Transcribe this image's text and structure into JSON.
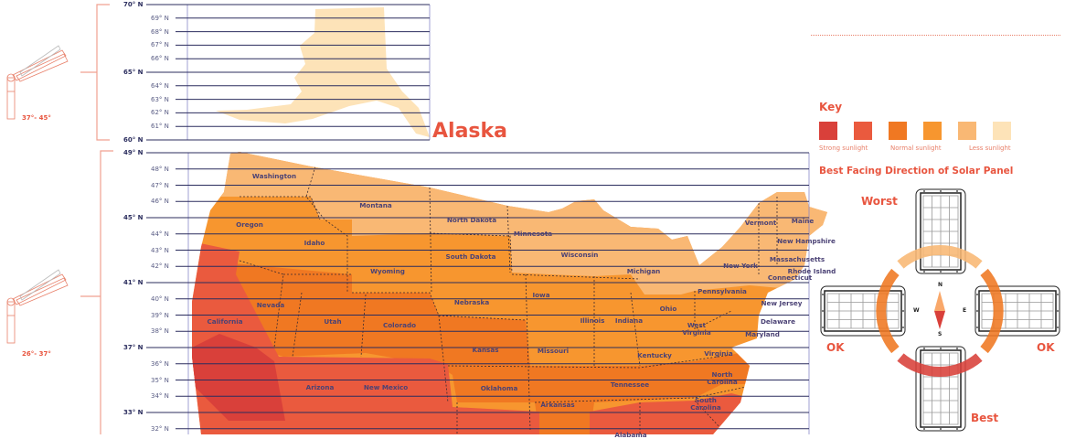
{
  "alaska": {
    "title": "Alaska",
    "latitudes": [
      {
        "label": "70° N",
        "major": true
      },
      {
        "label": "69° N",
        "major": false
      },
      {
        "label": "68° N",
        "major": false
      },
      {
        "label": "67° N",
        "major": false
      },
      {
        "label": "66° N",
        "major": false
      },
      {
        "label": "65° N",
        "major": true
      },
      {
        "label": "64° N",
        "major": false
      },
      {
        "label": "63° N",
        "major": false
      },
      {
        "label": "62° N",
        "major": false
      },
      {
        "label": "61° N",
        "major": false
      },
      {
        "label": "60° N",
        "major": true
      }
    ],
    "tilt_range": "37°- 45°"
  },
  "conus": {
    "latitudes": [
      {
        "label": "49° N",
        "major": true
      },
      {
        "label": "48° N",
        "major": false
      },
      {
        "label": "47° N",
        "major": false
      },
      {
        "label": "46° N",
        "major": false
      },
      {
        "label": "45° N",
        "major": true
      },
      {
        "label": "44° N",
        "major": false
      },
      {
        "label": "43° N",
        "major": false
      },
      {
        "label": "42° N",
        "major": false
      },
      {
        "label": "41° N",
        "major": true
      },
      {
        "label": "40° N",
        "major": false
      },
      {
        "label": "39° N",
        "major": false
      },
      {
        "label": "38° N",
        "major": false
      },
      {
        "label": "37° N",
        "major": true
      },
      {
        "label": "36° N",
        "major": false
      },
      {
        "label": "35° N",
        "major": false
      },
      {
        "label": "34° N",
        "major": false
      },
      {
        "label": "33° N",
        "major": true
      },
      {
        "label": "32° N",
        "major": false
      }
    ],
    "tilt_range": "26°- 37°",
    "states": [
      "Washington",
      "Montana",
      "North Dakota",
      "Minnesota",
      "Oregon",
      "Idaho",
      "South Dakota",
      "Wisconsin",
      "Michigan",
      "Wyoming",
      "Nebraska",
      "Iowa",
      "Illinois",
      "Indiana",
      "Ohio",
      "Pennsylvania",
      "Nevada",
      "Utah",
      "Colorado",
      "California",
      "Kansas",
      "Missouri",
      "Kentucky",
      "West Virginia",
      "Virginia",
      "Arizona",
      "New Mexico",
      "Oklahoma",
      "Tennessee",
      "North Carolina",
      "Arkansas",
      "South Carolina",
      "Alabama",
      "Vermont",
      "Maine",
      "New Hampshire",
      "Massachusetts",
      "Rhode Island",
      "Connecticut",
      "New York",
      "New Jersey",
      "Delaware",
      "Maryland"
    ]
  },
  "key": {
    "title": "Key",
    "colors": [
      "#d9403a",
      "#ea5a3e",
      "#f07822",
      "#f7962f",
      "#f9b874",
      "#fde3b8"
    ],
    "labels": [
      "Strong sunlight",
      "Normal sunlight",
      "Less sunlight"
    ]
  },
  "direction": {
    "title": "Best Facing Direction of Solar Panel",
    "worst": "Worst",
    "ok_left": "OK",
    "ok_right": "OK",
    "best": "Best",
    "compass": {
      "n": "N",
      "s": "S",
      "e": "E",
      "w": "W"
    }
  }
}
